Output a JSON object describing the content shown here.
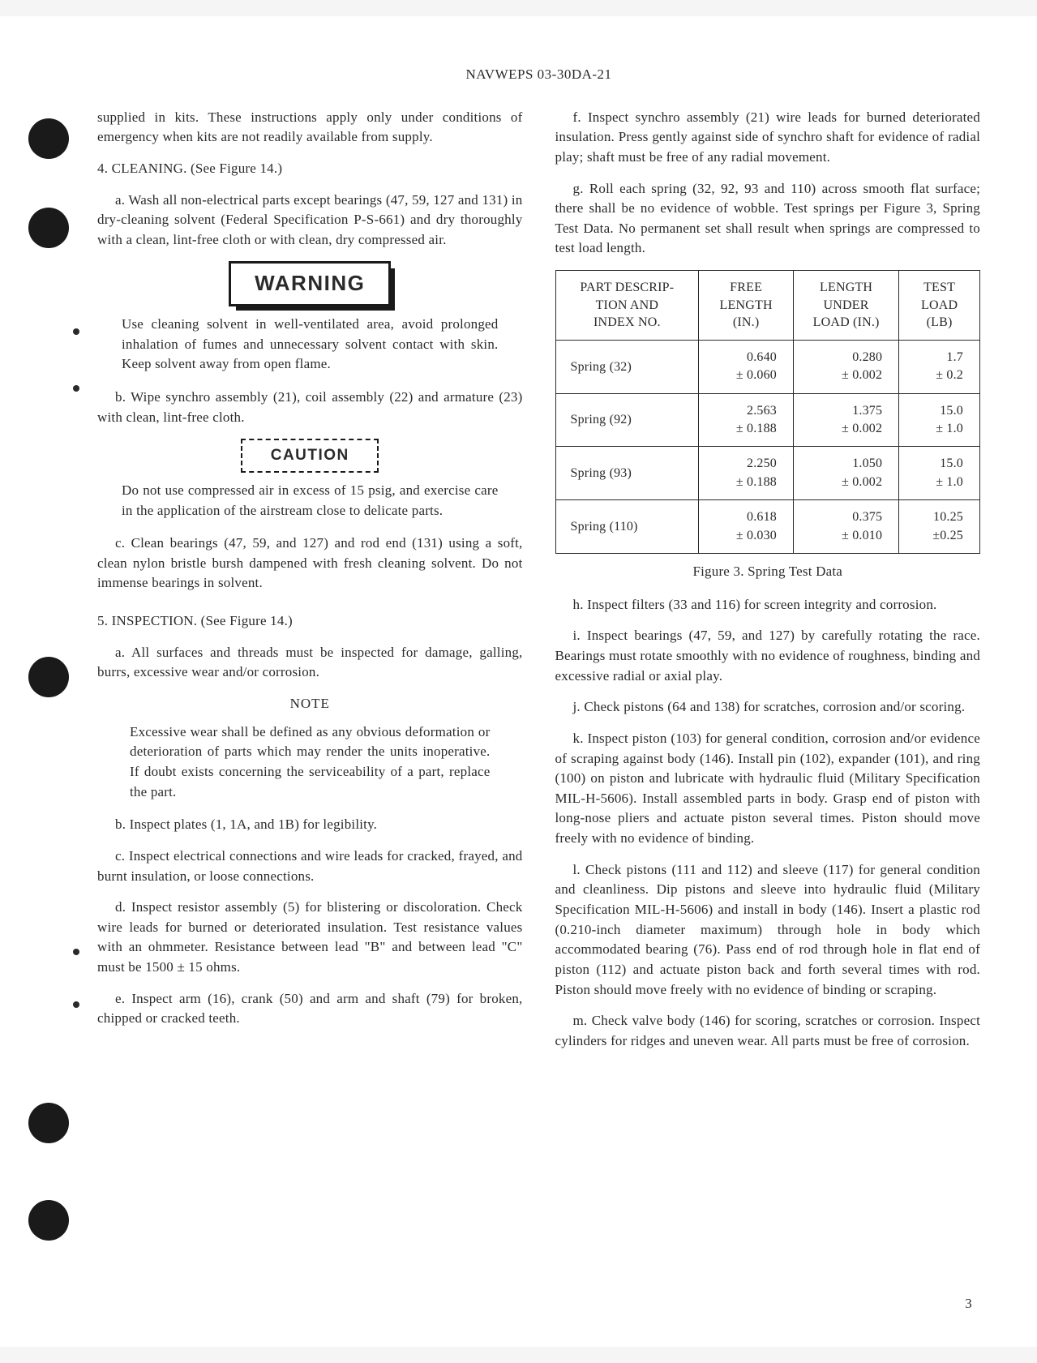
{
  "header": "NAVWEPS 03-30DA-21",
  "page_number": "3",
  "left_col": {
    "intro_tail": "supplied in kits. These instructions apply only under conditions of emergency when kits are not readily available from supply.",
    "s4_head": "4.   CLEANING.  (See Figure 14.)",
    "s4a": "a.  Wash all non-electrical parts except bearings (47, 59, 127 and 131) in dry-cleaning solvent (Federal Specification P-S-661) and dry thoroughly with a clean, lint-free cloth or with clean, dry compressed air.",
    "warning_label": "WARNING",
    "warning_body": "Use cleaning solvent in well-ventilated area, avoid prolonged inhalation of fumes and unnecessary solvent contact with skin. Keep solvent away from open flame.",
    "s4b": "b.  Wipe synchro assembly (21), coil assembly (22) and armature (23) with clean, lint-free cloth.",
    "caution_label": "CAUTION",
    "caution_body": "Do not use compressed air in excess of 15 psig, and exercise care in the application of the airstream close to delicate parts.",
    "s4c": "c.  Clean bearings (47, 59, and 127) and rod end (131) using a soft, clean nylon bristle bursh dampened with fresh cleaning solvent. Do not immense bearings in solvent.",
    "s5_head": "5.   INSPECTION.  (See Figure 14.)",
    "s5a": "a.  All surfaces and threads must be inspected for damage, galling, burrs, excessive wear and/or corrosion.",
    "note_label": "NOTE",
    "note_body": "Excessive wear shall be defined as any obvious deformation or deterioration of parts which may render the units inoperative. If doubt exists concerning the serviceability of a part, replace the part.",
    "s5b": "b.  Inspect plates (1, 1A, and 1B) for legibility.",
    "s5c": "c.  Inspect electrical connections and wire leads for cracked, frayed, and burnt insulation, or loose connections.",
    "s5d": "d.  Inspect resistor assembly (5) for blistering or discoloration. Check wire leads for burned or deteriorated insulation. Test resistance values with an ohmmeter. Resistance between lead \"B\" and between lead \"C\" must be 1500 ± 15 ohms.",
    "s5e": "e.  Inspect arm (16), crank (50) and arm and shaft (79) for broken, chipped or cracked teeth."
  },
  "right_col": {
    "s5f": "f.   Inspect synchro assembly (21) wire leads for burned deteriorated insulation. Press gently against side of synchro shaft for evidence of radial play; shaft must be free of any radial movement.",
    "s5g": "g.  Roll each spring (32, 92, 93 and 110) across smooth flat surface; there shall be no evidence of wobble. Test springs per Figure 3, Spring Test Data. No permanent set shall result when springs are compressed to test load length.",
    "table": {
      "head": {
        "c1": "PART DESCRIP-\nTION AND\nINDEX NO.",
        "c2": "FREE\nLENGTH\n(IN.)",
        "c3": "LENGTH\nUNDER\nLOAD (IN.)",
        "c4": "TEST\nLOAD\n(LB)"
      },
      "rows": [
        {
          "desc": "Spring (32)",
          "free": "0.640\n± 0.060",
          "under": "0.280\n± 0.002",
          "load": "1.7\n± 0.2"
        },
        {
          "desc": "Spring (92)",
          "free": "2.563\n± 0.188",
          "under": "1.375\n± 0.002",
          "load": "15.0\n± 1.0"
        },
        {
          "desc": "Spring (93)",
          "free": "2.250\n± 0.188",
          "under": "1.050\n± 0.002",
          "load": "15.0\n± 1.0"
        },
        {
          "desc": "Spring (110)",
          "free": "0.618\n± 0.030",
          "under": "0.375\n± 0.010",
          "load": "10.25\n±0.25"
        }
      ],
      "caption": "Figure 3.  Spring Test Data"
    },
    "s5h": "h.  Inspect filters (33 and 116) for screen integrity and corrosion.",
    "s5i": "i.   Inspect bearings (47, 59, and 127) by carefully rotating the race. Bearings must rotate smoothly with no evidence of roughness, binding and excessive radial or axial play.",
    "s5j": "j.   Check pistons (64 and 138) for scratches, corrosion and/or scoring.",
    "s5k": "k.  Inspect piston (103) for general condition, corrosion and/or evidence of scraping against body (146). Install pin (102), expander (101), and ring (100) on piston and lubricate with hydraulic fluid (Military Specification MIL-H-5606). Install assembled parts in body. Grasp end of piston with long-nose pliers and actuate piston several times. Piston should move freely with no evidence of binding.",
    "s5l": "l.   Check pistons (111 and 112) and sleeve (117) for general condition and cleanliness. Dip pistons and sleeve into hydraulic fluid (Military Specification MIL-H-5606) and install in body (146). Insert a plastic rod (0.210-inch diameter maximum) through hole in body which accommodated bearing (76). Pass end of rod through hole in flat end of piston (112) and actuate piston back and forth several times with rod. Piston should move freely with no evidence of binding or scraping.",
    "s5m": "m.  Check valve body (146) for scoring, scratches or corrosion. Inspect cylinders for ridges and uneven wear. All parts must be free of corrosion."
  }
}
